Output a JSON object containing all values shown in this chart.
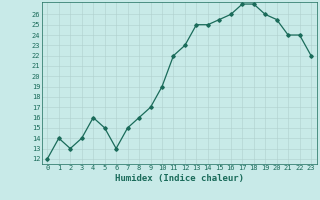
{
  "x": [
    0,
    1,
    2,
    3,
    4,
    5,
    6,
    7,
    8,
    9,
    10,
    11,
    12,
    13,
    14,
    15,
    16,
    17,
    18,
    19,
    20,
    21,
    22,
    23
  ],
  "y": [
    12,
    14,
    13,
    14,
    16,
    15,
    13,
    15,
    16,
    17,
    19,
    22,
    23,
    25,
    25,
    25.5,
    26,
    27,
    27,
    26,
    25.5,
    24,
    24,
    22
  ],
  "line_color": "#1a6b5a",
  "bg_color": "#c8eae8",
  "grid_color": "#b0d0ce",
  "xlabel": "Humidex (Indice chaleur)",
  "xlim": [
    -0.5,
    23.5
  ],
  "ylim": [
    11.5,
    27.2
  ],
  "yticks": [
    12,
    13,
    14,
    15,
    16,
    17,
    18,
    19,
    20,
    21,
    22,
    23,
    24,
    25,
    26
  ],
  "xticks": [
    0,
    1,
    2,
    3,
    4,
    5,
    6,
    7,
    8,
    9,
    10,
    11,
    12,
    13,
    14,
    15,
    16,
    17,
    18,
    19,
    20,
    21,
    22,
    23
  ],
  "tick_fontsize": 5,
  "xlabel_fontsize": 6.5,
  "marker": "D",
  "marker_size": 1.8,
  "linewidth": 0.9
}
